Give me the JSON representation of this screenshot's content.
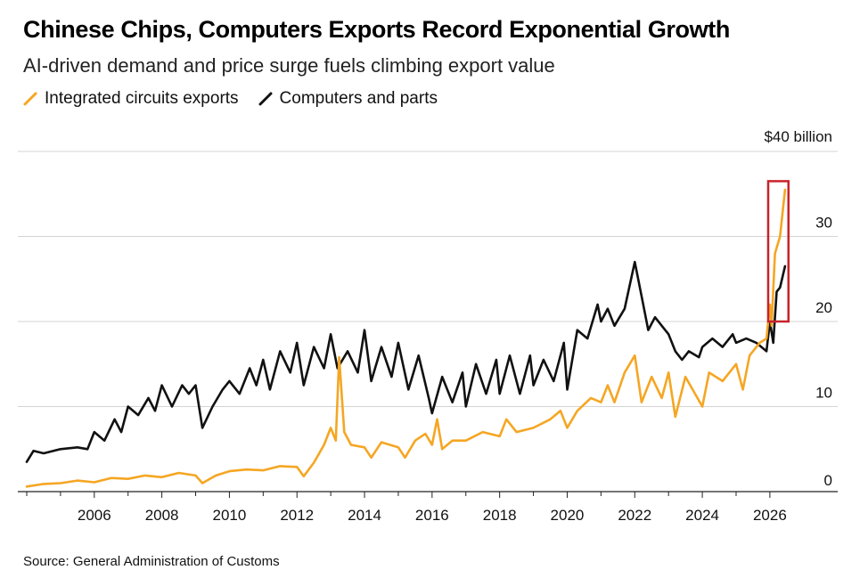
{
  "header": {
    "title": "Chinese Chips, Computers Exports Record Exponential Growth",
    "subtitle": "AI-driven demand and price surge fuels climbing export value"
  },
  "legend": {
    "items": [
      {
        "label": "Integrated circuits exports",
        "color": "#f5a623"
      },
      {
        "label": "Computers and parts",
        "color": "#111111"
      }
    ]
  },
  "footer": {
    "source": "Source: General Administration of Customs"
  },
  "highlight_box": {
    "color": "#c8222a",
    "x_range": [
      2025.95,
      2026.55
    ],
    "y_range": [
      20,
      36.5
    ]
  },
  "chart_data": {
    "type": "line",
    "title": "Chinese Chips, Computers Exports Record Exponential Growth",
    "subtitle": "AI-driven demand and price surge fuels climbing export value",
    "xlabel": "",
    "ylabel": "",
    "unit_label": "$40 billion",
    "xlim": [
      2004.0,
      2026.9
    ],
    "ylim": [
      0,
      40
    ],
    "x_ticks": [
      2006,
      2008,
      2010,
      2012,
      2014,
      2016,
      2018,
      2020,
      2022,
      2024,
      2026
    ],
    "x_tick_labels": [
      "2006",
      "2008",
      "2010",
      "2012",
      "2014",
      "2016",
      "2018",
      "2020",
      "2022",
      "2024",
      "2026"
    ],
    "y_ticks": [
      0,
      10,
      20,
      30,
      40
    ],
    "y_tick_labels": [
      "0",
      "10",
      "20",
      "30",
      "$40 billion"
    ],
    "grid": true,
    "legend_position": "top-left",
    "series": [
      {
        "name": "Integrated circuits exports",
        "color": "#f5a623",
        "points": [
          [
            2004.0,
            0.6
          ],
          [
            2004.5,
            0.9
          ],
          [
            2005.0,
            1.0
          ],
          [
            2005.5,
            1.3
          ],
          [
            2006.0,
            1.1
          ],
          [
            2006.5,
            1.6
          ],
          [
            2007.0,
            1.5
          ],
          [
            2007.5,
            1.9
          ],
          [
            2008.0,
            1.7
          ],
          [
            2008.5,
            2.2
          ],
          [
            2009.0,
            1.9
          ],
          [
            2009.2,
            1.0
          ],
          [
            2009.6,
            1.9
          ],
          [
            2010.0,
            2.4
          ],
          [
            2010.5,
            2.6
          ],
          [
            2011.0,
            2.5
          ],
          [
            2011.5,
            3.0
          ],
          [
            2012.0,
            2.9
          ],
          [
            2012.2,
            1.8
          ],
          [
            2012.5,
            3.4
          ],
          [
            2012.8,
            5.5
          ],
          [
            2013.0,
            7.5
          ],
          [
            2013.15,
            6.0
          ],
          [
            2013.25,
            15.8
          ],
          [
            2013.4,
            7.0
          ],
          [
            2013.6,
            5.5
          ],
          [
            2014.0,
            5.2
          ],
          [
            2014.2,
            4.0
          ],
          [
            2014.5,
            5.8
          ],
          [
            2015.0,
            5.2
          ],
          [
            2015.2,
            4.0
          ],
          [
            2015.5,
            6.0
          ],
          [
            2015.8,
            6.8
          ],
          [
            2016.0,
            5.5
          ],
          [
            2016.15,
            8.5
          ],
          [
            2016.3,
            5.0
          ],
          [
            2016.6,
            6.0
          ],
          [
            2017.0,
            6.0
          ],
          [
            2017.5,
            7.0
          ],
          [
            2018.0,
            6.5
          ],
          [
            2018.2,
            8.5
          ],
          [
            2018.5,
            7.0
          ],
          [
            2019.0,
            7.5
          ],
          [
            2019.5,
            8.5
          ],
          [
            2019.8,
            9.5
          ],
          [
            2020.0,
            7.5
          ],
          [
            2020.3,
            9.5
          ],
          [
            2020.7,
            11.0
          ],
          [
            2021.0,
            10.5
          ],
          [
            2021.2,
            12.5
          ],
          [
            2021.4,
            10.5
          ],
          [
            2021.7,
            14.0
          ],
          [
            2022.0,
            16.0
          ],
          [
            2022.2,
            10.5
          ],
          [
            2022.5,
            13.5
          ],
          [
            2022.8,
            11.0
          ],
          [
            2023.0,
            14.0
          ],
          [
            2023.2,
            8.8
          ],
          [
            2023.5,
            13.5
          ],
          [
            2024.0,
            10.0
          ],
          [
            2024.2,
            14.0
          ],
          [
            2024.6,
            13.0
          ],
          [
            2025.0,
            15.0
          ],
          [
            2025.2,
            12.0
          ],
          [
            2025.4,
            16.0
          ],
          [
            2025.7,
            17.5
          ],
          [
            2025.9,
            18.0
          ],
          [
            2026.0,
            22.0
          ],
          [
            2026.05,
            19.5
          ],
          [
            2026.15,
            28.0
          ],
          [
            2026.3,
            30.0
          ],
          [
            2026.45,
            35.5
          ]
        ]
      },
      {
        "name": "Computers and parts",
        "color": "#111111",
        "points": [
          [
            2004.0,
            3.5
          ],
          [
            2004.2,
            4.8
          ],
          [
            2004.5,
            4.5
          ],
          [
            2005.0,
            5.0
          ],
          [
            2005.5,
            5.2
          ],
          [
            2005.8,
            5.0
          ],
          [
            2006.0,
            7.0
          ],
          [
            2006.3,
            6.0
          ],
          [
            2006.6,
            8.5
          ],
          [
            2006.8,
            7.0
          ],
          [
            2007.0,
            10.0
          ],
          [
            2007.3,
            9.0
          ],
          [
            2007.6,
            11.0
          ],
          [
            2007.8,
            9.5
          ],
          [
            2008.0,
            12.5
          ],
          [
            2008.3,
            10.0
          ],
          [
            2008.6,
            12.5
          ],
          [
            2008.8,
            11.5
          ],
          [
            2009.0,
            12.5
          ],
          [
            2009.2,
            7.5
          ],
          [
            2009.5,
            10.0
          ],
          [
            2009.8,
            12.0
          ],
          [
            2010.0,
            13.0
          ],
          [
            2010.3,
            11.5
          ],
          [
            2010.6,
            14.5
          ],
          [
            2010.8,
            12.5
          ],
          [
            2011.0,
            15.5
          ],
          [
            2011.2,
            12.0
          ],
          [
            2011.5,
            16.5
          ],
          [
            2011.8,
            14.0
          ],
          [
            2012.0,
            17.5
          ],
          [
            2012.2,
            12.5
          ],
          [
            2012.5,
            17.0
          ],
          [
            2012.8,
            14.5
          ],
          [
            2013.0,
            18.5
          ],
          [
            2013.2,
            14.5
          ],
          [
            2013.5,
            16.5
          ],
          [
            2013.8,
            14.0
          ],
          [
            2014.0,
            19.0
          ],
          [
            2014.2,
            13.0
          ],
          [
            2014.5,
            17.0
          ],
          [
            2014.8,
            13.5
          ],
          [
            2015.0,
            17.5
          ],
          [
            2015.3,
            12.0
          ],
          [
            2015.6,
            16.0
          ],
          [
            2015.9,
            11.0
          ],
          [
            2016.0,
            9.2
          ],
          [
            2016.3,
            13.5
          ],
          [
            2016.6,
            10.5
          ],
          [
            2016.9,
            14.0
          ],
          [
            2017.0,
            10.0
          ],
          [
            2017.3,
            15.0
          ],
          [
            2017.6,
            11.5
          ],
          [
            2017.9,
            15.5
          ],
          [
            2018.0,
            11.5
          ],
          [
            2018.3,
            16.0
          ],
          [
            2018.6,
            11.5
          ],
          [
            2018.9,
            16.0
          ],
          [
            2019.0,
            12.5
          ],
          [
            2019.3,
            15.5
          ],
          [
            2019.6,
            13.0
          ],
          [
            2019.9,
            17.5
          ],
          [
            2020.0,
            12.0
          ],
          [
            2020.3,
            19.0
          ],
          [
            2020.6,
            18.0
          ],
          [
            2020.9,
            22.0
          ],
          [
            2021.0,
            20.0
          ],
          [
            2021.2,
            21.5
          ],
          [
            2021.4,
            19.5
          ],
          [
            2021.7,
            21.5
          ],
          [
            2022.0,
            27.0
          ],
          [
            2022.2,
            23.0
          ],
          [
            2022.4,
            19.0
          ],
          [
            2022.6,
            20.5
          ],
          [
            2022.8,
            19.5
          ],
          [
            2023.0,
            18.5
          ],
          [
            2023.2,
            16.5
          ],
          [
            2023.4,
            15.5
          ],
          [
            2023.6,
            16.5
          ],
          [
            2023.9,
            15.8
          ],
          [
            2024.0,
            17.0
          ],
          [
            2024.3,
            18.0
          ],
          [
            2024.6,
            17.0
          ],
          [
            2024.9,
            18.5
          ],
          [
            2025.0,
            17.5
          ],
          [
            2025.3,
            18.0
          ],
          [
            2025.6,
            17.5
          ],
          [
            2025.9,
            16.5
          ],
          [
            2026.0,
            20.0
          ],
          [
            2026.1,
            17.5
          ],
          [
            2026.2,
            23.5
          ],
          [
            2026.3,
            24.0
          ],
          [
            2026.45,
            26.5
          ]
        ]
      }
    ]
  }
}
